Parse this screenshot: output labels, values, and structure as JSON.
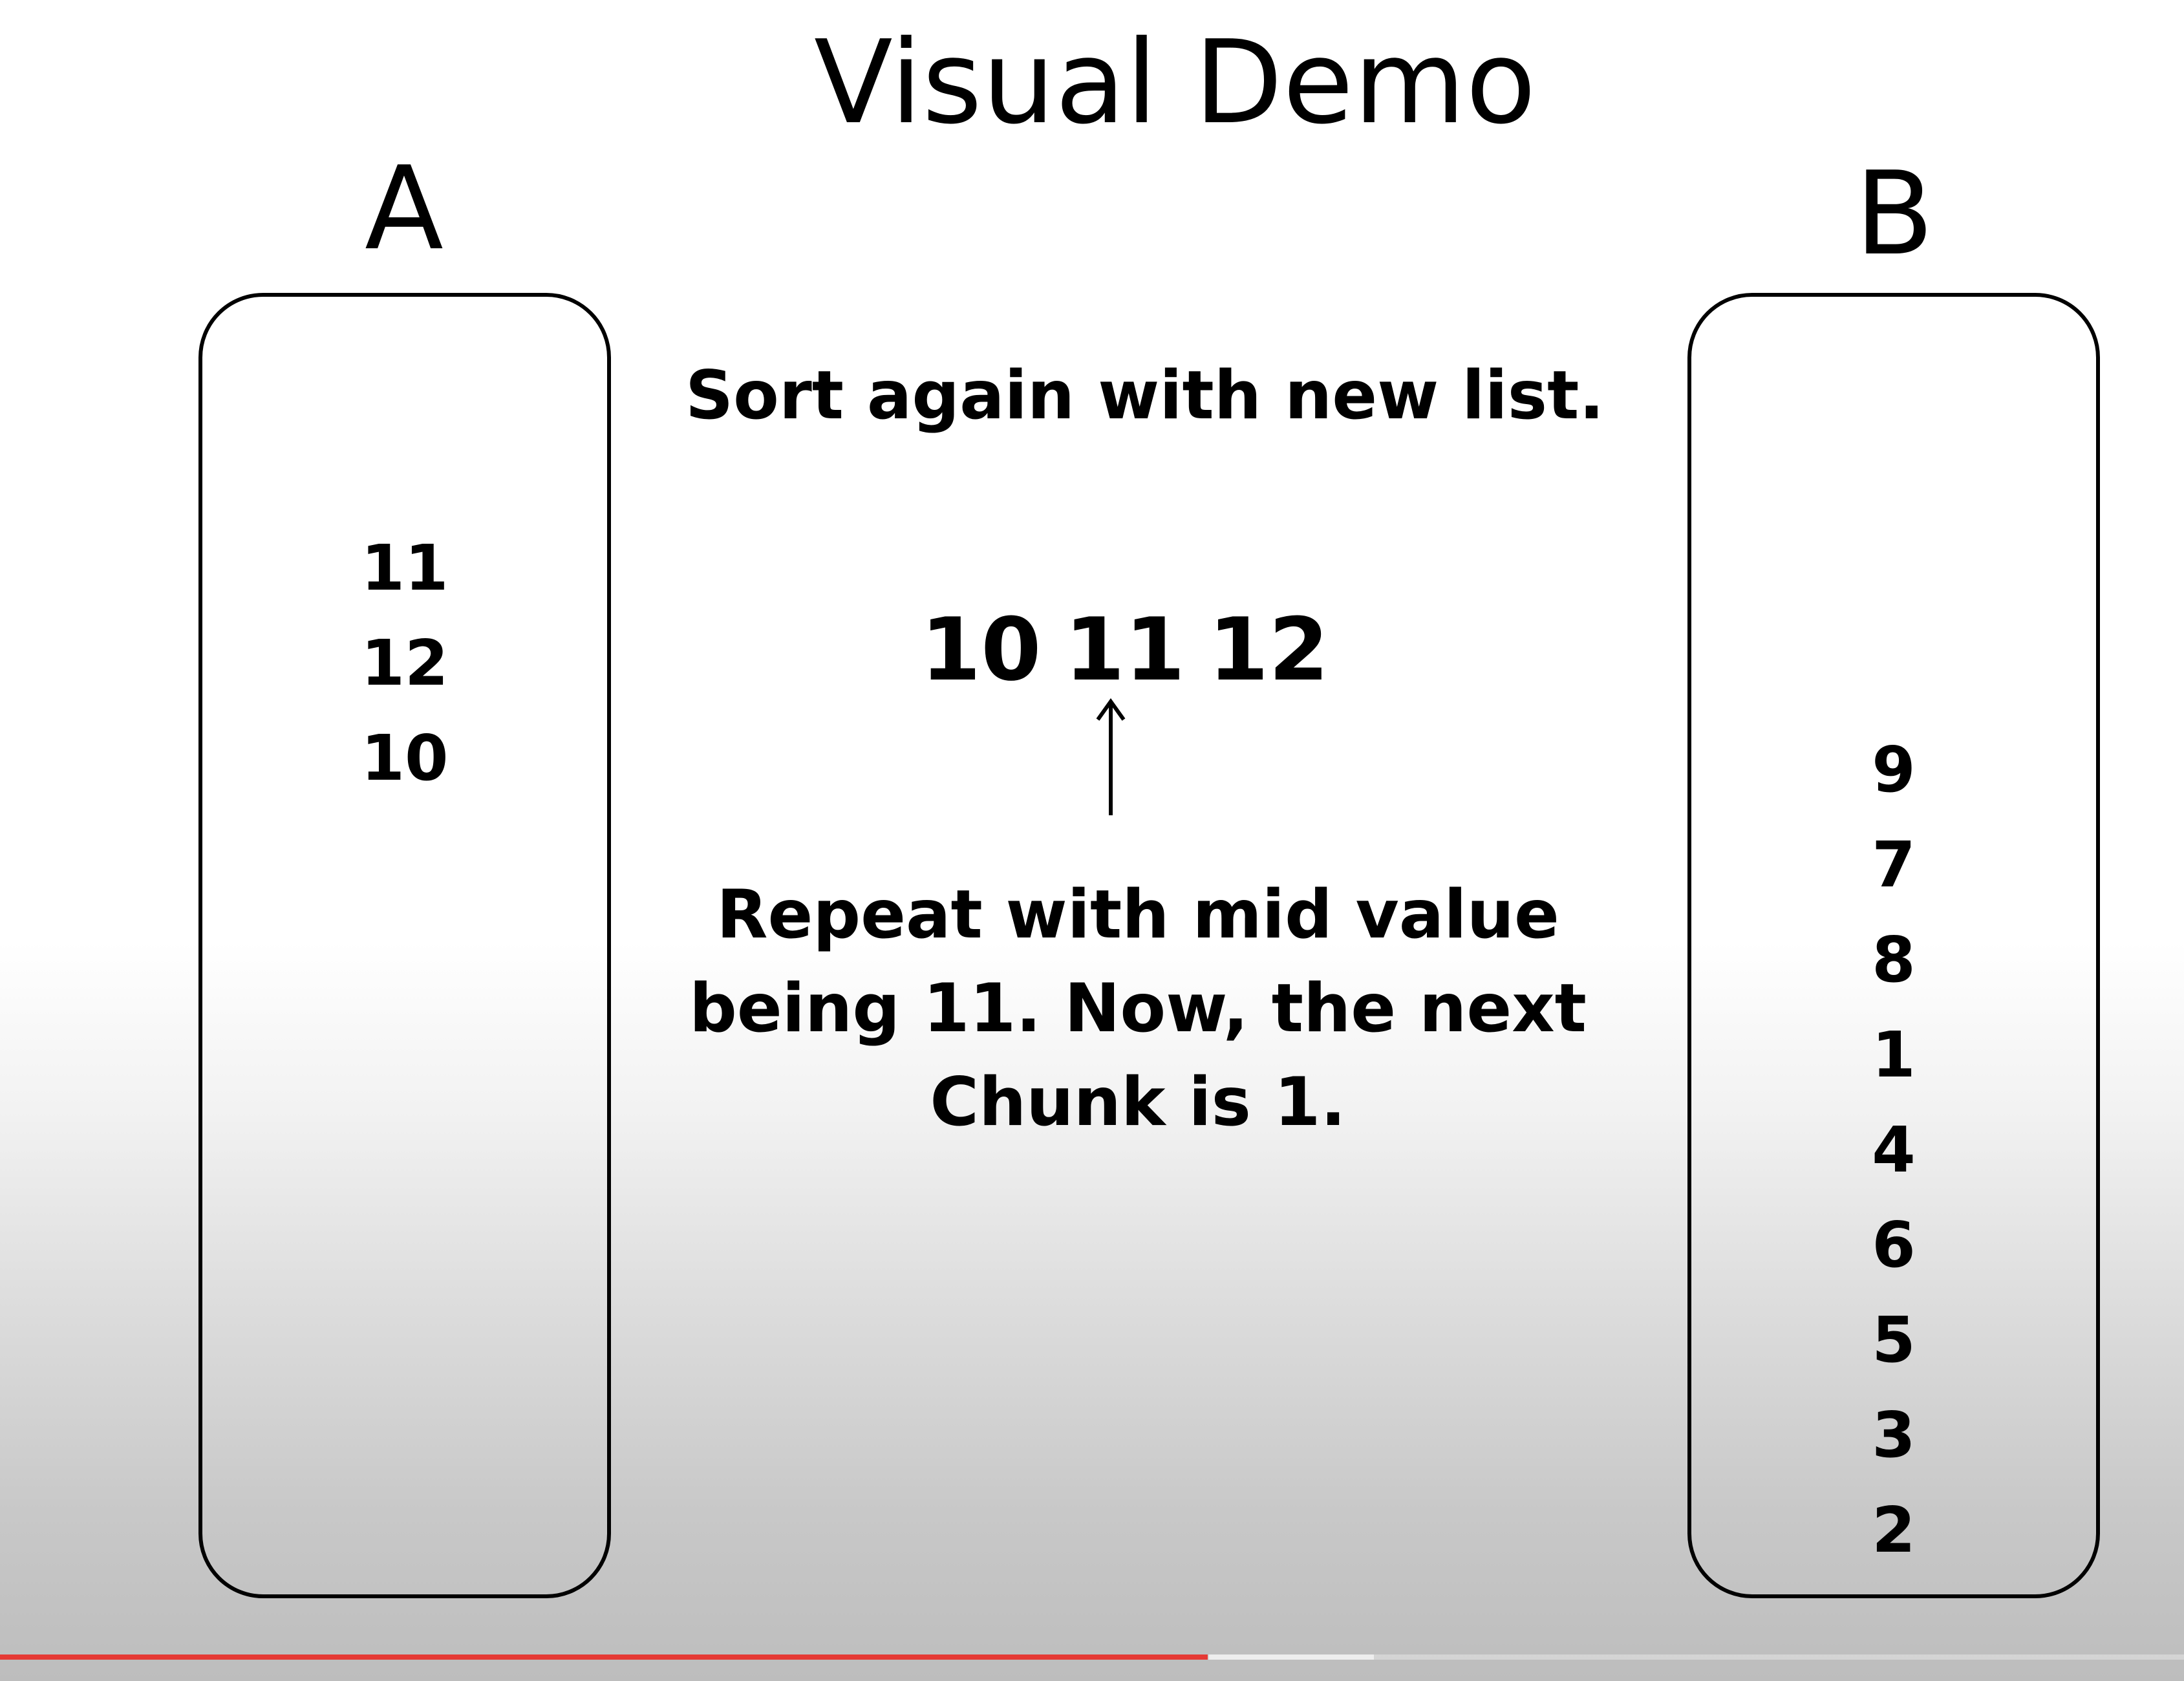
{
  "title": "Visual Demo",
  "column_a": {
    "label": "A",
    "items": [
      "11",
      "12",
      "10"
    ]
  },
  "column_b": {
    "label": "B",
    "items": [
      "9",
      "7",
      "8",
      "1",
      "4",
      "6",
      "5",
      "3",
      "2"
    ]
  },
  "instruction": "Sort again with new list.",
  "sequence": [
    "10",
    "11",
    "12"
  ],
  "explanation": {
    "lines": [
      "Repeat with mid value",
      "being 11. Now, the next",
      "Chunk is 1."
    ]
  },
  "player": {
    "progress": 0.553,
    "accent_color": "#e53935"
  }
}
